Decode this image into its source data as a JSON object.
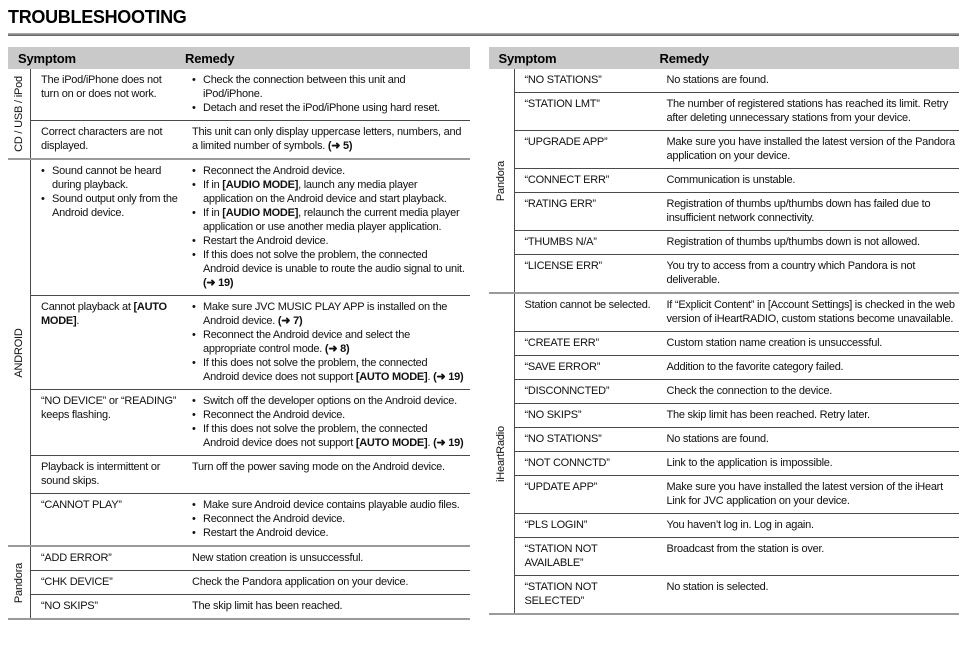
{
  "page": {
    "title": "TROUBLESHOOTING"
  },
  "tables": [
    {
      "headers": {
        "symptom": "Symptom",
        "remedy": "Remedy"
      },
      "sections": [
        {
          "label": "CD / USB / iPod",
          "rows": [
            {
              "symptom": {
                "bullets": false,
                "items": [
                  "The iPod/iPhone does not turn on or does not work."
                ]
              },
              "remedy": {
                "bullets": true,
                "items": [
                  "Check the connection between this unit and iPod/iPhone.",
                  "Detach and reset the iPod/iPhone using hard reset."
                ]
              }
            },
            {
              "symptom": {
                "bullets": false,
                "items": [
                  "Correct characters are not displayed."
                ]
              },
              "remedy": {
                "bullets": false,
                "items": [
                  "This unit can only display uppercase letters, numbers, and a limited number of symbols. (➜ 5)"
                ]
              }
            }
          ]
        },
        {
          "label": "ANDROID",
          "rows": [
            {
              "symptom": {
                "bullets": true,
                "items": [
                  "Sound cannot be heard during playback.",
                  "Sound output only from the Android device."
                ]
              },
              "remedy": {
                "bullets": true,
                "items": [
                  "Reconnect the Android device.",
                  "If in [AUDIO MODE], launch any media player application on the Android device and start playback.",
                  "If in [AUDIO MODE], relaunch the current media player application or use another media player application.",
                  "Restart the Android device.",
                  "If this does not solve the problem, the connected Android device is unable to route the audio signal to unit. (➜ 19)"
                ]
              }
            },
            {
              "symptom": {
                "bullets": false,
                "items": [
                  "Cannot playback at [AUTO MODE]."
                ]
              },
              "remedy": {
                "bullets": true,
                "items": [
                  "Make sure JVC MUSIC PLAY APP is installed on the Android device. (➜ 7)",
                  "Reconnect the Android device and select the appropriate control mode. (➜ 8)",
                  "If this does not solve the problem, the connected Android device does not support [AUTO MODE]. (➜ 19)"
                ]
              }
            },
            {
              "symptom": {
                "bullets": false,
                "items": [
                  "“NO DEVICE” or “READING” keeps flashing."
                ]
              },
              "remedy": {
                "bullets": true,
                "items": [
                  "Switch off the developer options on the Android device.",
                  "Reconnect the Android device.",
                  "If this does not solve the problem, the connected Android device does not support [AUTO MODE]. (➜ 19)"
                ]
              }
            },
            {
              "symptom": {
                "bullets": false,
                "items": [
                  "Playback is intermittent or sound skips."
                ]
              },
              "remedy": {
                "bullets": false,
                "items": [
                  "Turn off the power saving mode on the Android device."
                ]
              }
            },
            {
              "symptom": {
                "bullets": false,
                "items": [
                  "“CANNOT PLAY”"
                ]
              },
              "remedy": {
                "bullets": true,
                "items": [
                  "Make sure Android device contains playable audio files.",
                  "Reconnect the Android device.",
                  "Restart the Android device."
                ]
              }
            }
          ]
        },
        {
          "label": "Pandora",
          "rows": [
            {
              "symptom": {
                "bullets": false,
                "items": [
                  "“ADD ERROR”"
                ]
              },
              "remedy": {
                "bullets": false,
                "items": [
                  "New station creation is unsuccessful."
                ]
              }
            },
            {
              "symptom": {
                "bullets": false,
                "items": [
                  "“CHK DEVICE”"
                ]
              },
              "remedy": {
                "bullets": false,
                "items": [
                  "Check the Pandora application on your device."
                ]
              }
            },
            {
              "symptom": {
                "bullets": false,
                "items": [
                  "“NO SKIPS”"
                ]
              },
              "remedy": {
                "bullets": false,
                "items": [
                  "The skip limit has been reached."
                ]
              }
            }
          ]
        }
      ]
    },
    {
      "headers": {
        "symptom": "Symptom",
        "remedy": "Remedy"
      },
      "sections": [
        {
          "label": "Pandora",
          "rows": [
            {
              "symptom": {
                "bullets": false,
                "items": [
                  "“NO STATIONS”"
                ]
              },
              "remedy": {
                "bullets": false,
                "items": [
                  "No stations are found."
                ]
              }
            },
            {
              "symptom": {
                "bullets": false,
                "items": [
                  "“STATION LMT”"
                ]
              },
              "remedy": {
                "bullets": false,
                "items": [
                  "The number of registered stations has reached its limit. Retry after deleting unnecessary stations from your device."
                ]
              }
            },
            {
              "symptom": {
                "bullets": false,
                "items": [
                  "“UPGRADE APP”"
                ]
              },
              "remedy": {
                "bullets": false,
                "items": [
                  "Make sure you have installed the latest version of the Pandora application on your device."
                ]
              }
            },
            {
              "symptom": {
                "bullets": false,
                "items": [
                  "“CONNECT ERR”"
                ]
              },
              "remedy": {
                "bullets": false,
                "items": [
                  "Communication is unstable."
                ]
              }
            },
            {
              "symptom": {
                "bullets": false,
                "items": [
                  "“RATING ERR”"
                ]
              },
              "remedy": {
                "bullets": false,
                "items": [
                  "Registration of thumbs up/thumbs down has failed due to insufficient network connectivity."
                ]
              }
            },
            {
              "symptom": {
                "bullets": false,
                "items": [
                  "“THUMBS N/A”"
                ]
              },
              "remedy": {
                "bullets": false,
                "items": [
                  "Registration of thumbs up/thumbs down is not allowed."
                ]
              }
            },
            {
              "symptom": {
                "bullets": false,
                "items": [
                  "“LICENSE ERR”"
                ]
              },
              "remedy": {
                "bullets": false,
                "items": [
                  "You try to access from a country which Pandora is not deliverable."
                ]
              }
            }
          ]
        },
        {
          "label": "iHeartRadio",
          "rows": [
            {
              "symptom": {
                "bullets": false,
                "items": [
                  "Station cannot be selected."
                ]
              },
              "remedy": {
                "bullets": false,
                "items": [
                  "If “Explicit Content” in [Account Settings] is checked in the web version of iHeartRADIO, custom stations become unavailable."
                ]
              }
            },
            {
              "symptom": {
                "bullets": false,
                "items": [
                  "“CREATE ERR”"
                ]
              },
              "remedy": {
                "bullets": false,
                "items": [
                  "Custom station name creation is unsuccessful."
                ]
              }
            },
            {
              "symptom": {
                "bullets": false,
                "items": [
                  "“SAVE ERROR”"
                ]
              },
              "remedy": {
                "bullets": false,
                "items": [
                  "Addition to the favorite category failed."
                ]
              }
            },
            {
              "symptom": {
                "bullets": false,
                "items": [
                  "“DISCONNCTED”"
                ]
              },
              "remedy": {
                "bullets": false,
                "items": [
                  "Check the connection to the device."
                ]
              }
            },
            {
              "symptom": {
                "bullets": false,
                "items": [
                  "“NO SKIPS”"
                ]
              },
              "remedy": {
                "bullets": false,
                "items": [
                  "The skip limit has been reached. Retry later."
                ]
              }
            },
            {
              "symptom": {
                "bullets": false,
                "items": [
                  "“NO STATIONS”"
                ]
              },
              "remedy": {
                "bullets": false,
                "items": [
                  "No stations are found."
                ]
              }
            },
            {
              "symptom": {
                "bullets": false,
                "items": [
                  "“NOT CONNCTD”"
                ]
              },
              "remedy": {
                "bullets": false,
                "items": [
                  "Link to the application is impossible."
                ]
              }
            },
            {
              "symptom": {
                "bullets": false,
                "items": [
                  "“UPDATE APP”"
                ]
              },
              "remedy": {
                "bullets": false,
                "items": [
                  "Make sure you have installed the latest version of the iHeart Link for JVC application on your device."
                ]
              }
            },
            {
              "symptom": {
                "bullets": false,
                "items": [
                  "“PLS LOGIN”"
                ]
              },
              "remedy": {
                "bullets": false,
                "items": [
                  "You haven’t log in. Log in again."
                ]
              }
            },
            {
              "symptom": {
                "bullets": false,
                "items": [
                  "“STATION NOT AVAILABLE”"
                ]
              },
              "remedy": {
                "bullets": false,
                "items": [
                  "Broadcast from the station is over."
                ]
              }
            },
            {
              "symptom": {
                "bullets": false,
                "items": [
                  "“STATION NOT SELECTED”"
                ]
              },
              "remedy": {
                "bullets": false,
                "items": [
                  "No station is selected."
                ]
              }
            }
          ]
        }
      ]
    }
  ]
}
